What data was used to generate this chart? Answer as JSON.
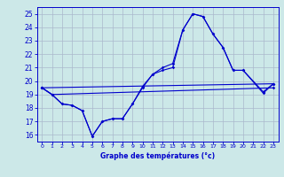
{
  "xlabel": "Graphe des températures (°c)",
  "xlim": [
    -0.5,
    23.5
  ],
  "ylim": [
    15.5,
    25.5
  ],
  "yticks": [
    16,
    17,
    18,
    19,
    20,
    21,
    22,
    23,
    24,
    25
  ],
  "xticks": [
    0,
    1,
    2,
    3,
    4,
    5,
    6,
    7,
    8,
    9,
    10,
    11,
    12,
    13,
    14,
    15,
    16,
    17,
    18,
    19,
    20,
    21,
    22,
    23
  ],
  "background_color": "#cce8e8",
  "grid_color": "#aab8cc",
  "line_color": "#0000cc",
  "line1_x": [
    0,
    1,
    23
  ],
  "line1_y": [
    19.5,
    19.0,
    19.5
  ],
  "line2_x": [
    0,
    23
  ],
  "line2_y": [
    19.5,
    19.8
  ],
  "line3_x": [
    0,
    1,
    2,
    3,
    4,
    5,
    6,
    7,
    8,
    9,
    10,
    11,
    12,
    13,
    14,
    15,
    16,
    17,
    18,
    19,
    20,
    22,
    23
  ],
  "line3_y": [
    19.5,
    19.0,
    18.3,
    18.2,
    17.8,
    15.9,
    17.0,
    17.2,
    17.2,
    18.3,
    19.5,
    20.5,
    20.8,
    21.0,
    23.8,
    25.0,
    24.8,
    23.5,
    22.5,
    20.8,
    20.8,
    19.2,
    19.8
  ],
  "line4_x": [
    0,
    1,
    2,
    3,
    4,
    5,
    6,
    7,
    8,
    9,
    10,
    11,
    12,
    13,
    14,
    15,
    16,
    17,
    18,
    19,
    20,
    22,
    23
  ],
  "line4_y": [
    19.5,
    19.0,
    18.3,
    18.2,
    17.8,
    15.9,
    17.0,
    17.2,
    17.2,
    18.3,
    19.6,
    20.5,
    21.0,
    21.3,
    23.8,
    25.0,
    24.8,
    23.5,
    22.5,
    20.8,
    20.8,
    19.1,
    19.8
  ]
}
